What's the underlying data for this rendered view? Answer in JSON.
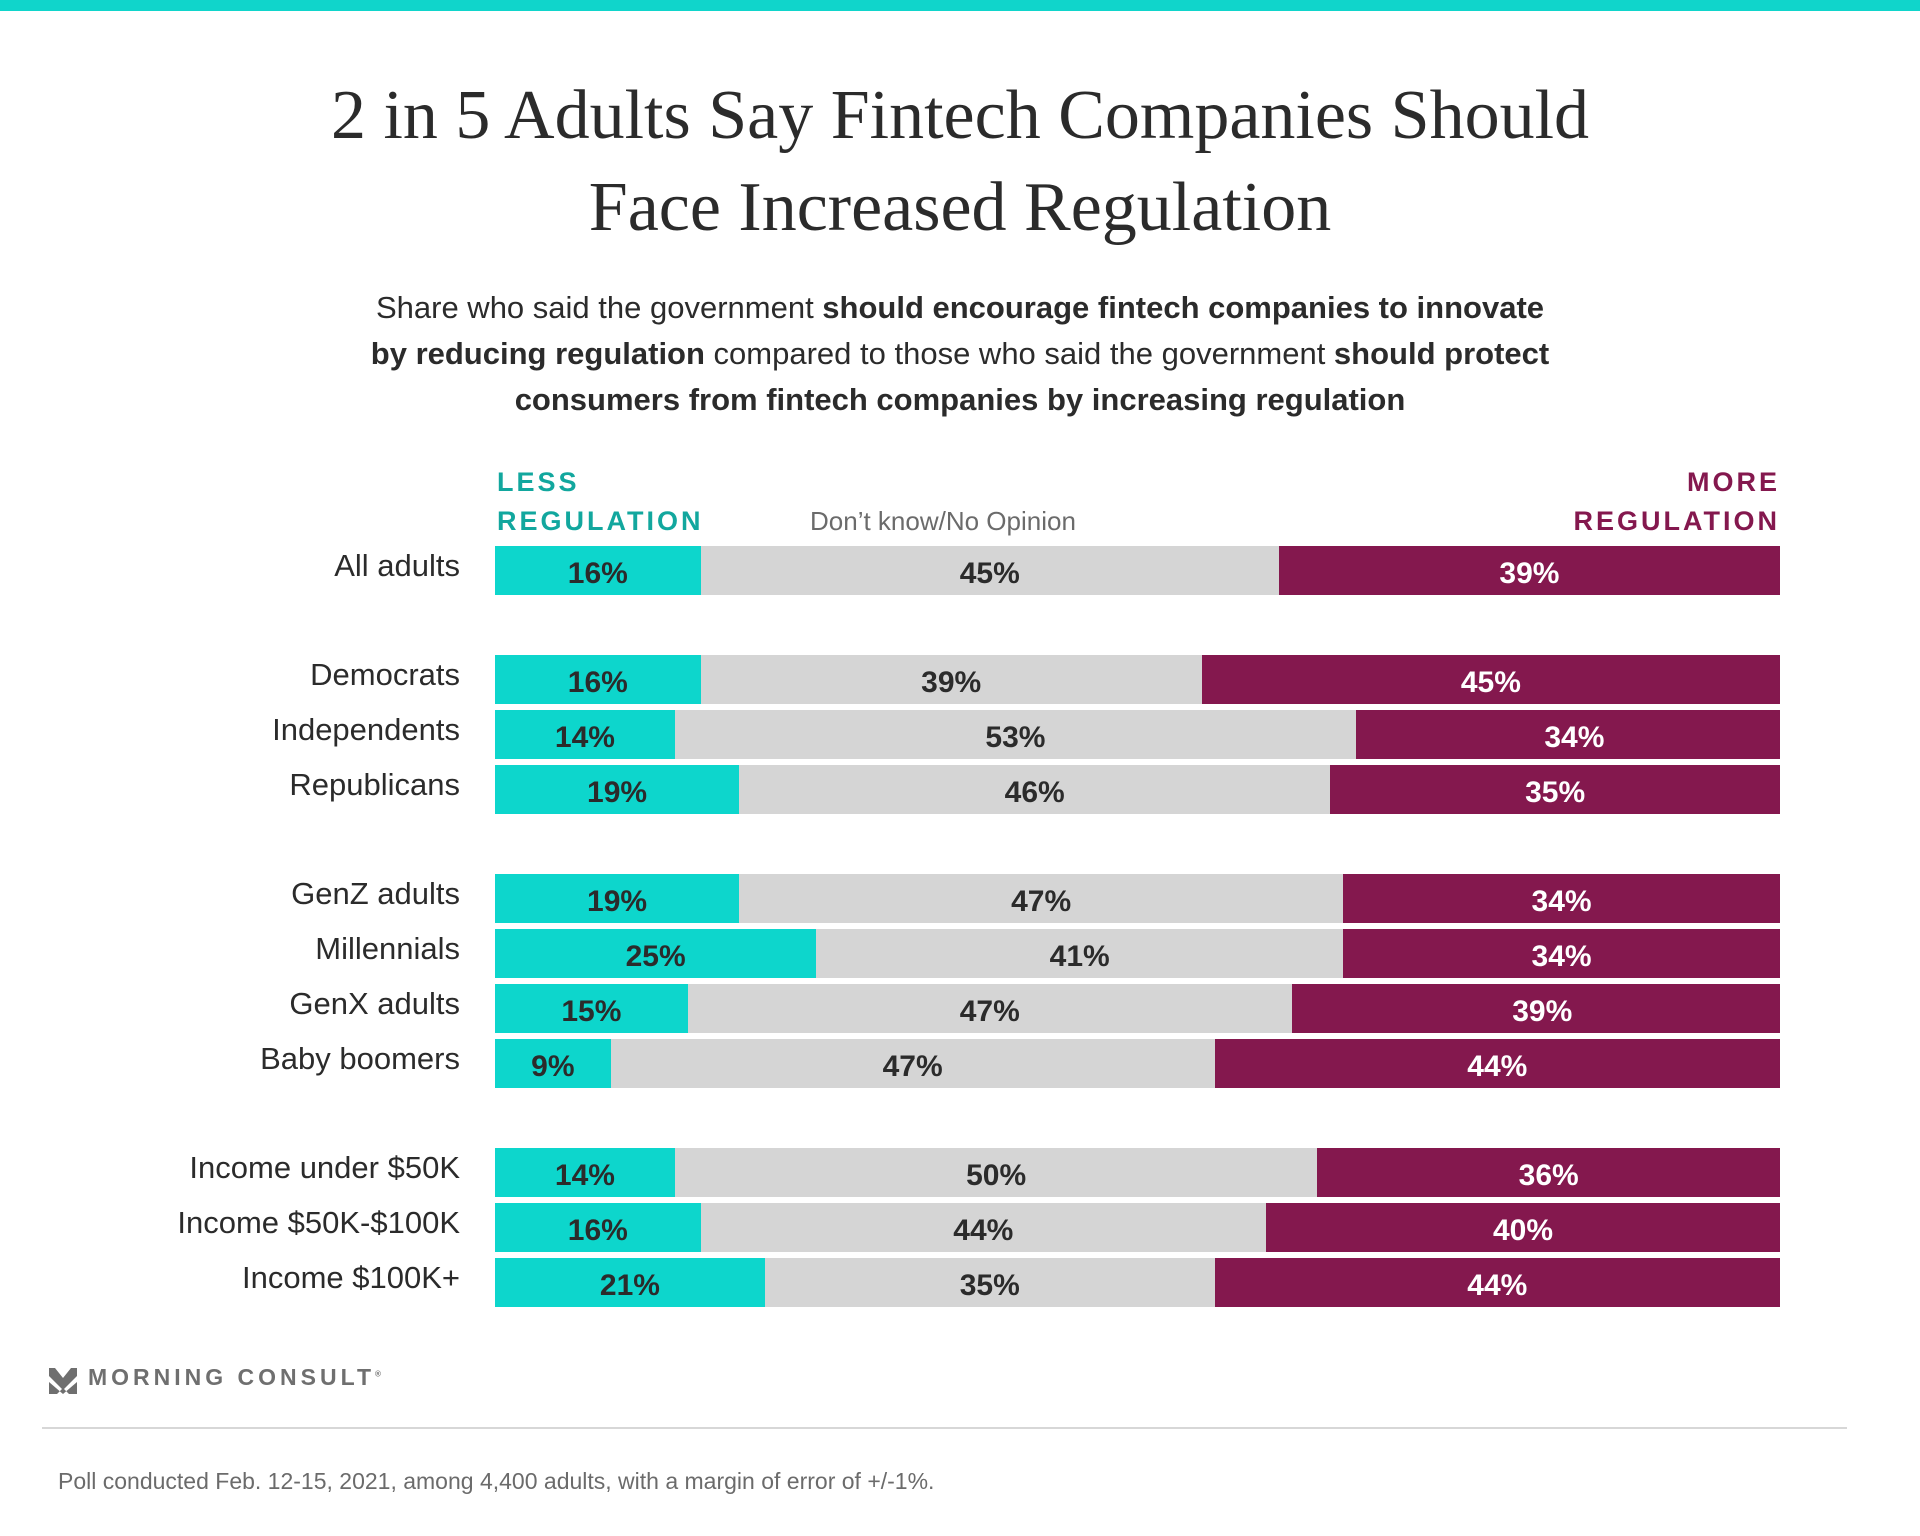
{
  "title_lines": [
    "2 in 5 Adults Say Fintech Companies Should",
    "Face Increased Regulation"
  ],
  "subtitle": {
    "line1_plain": "Share who said the government ",
    "line1_bold": "should encourage fintech companies to innovate",
    "line2_bold": "by reducing regulation",
    "line2_plain": " compared to those who said the government ",
    "line2_bold2": "should protect",
    "line3_bold": "consumers from fintech companies by increasing regulation"
  },
  "legend": {
    "less_line1": "LESS",
    "less_line2": "REGULATION",
    "dont_know": "Don’t know/No Opinion",
    "more_line1": "MORE",
    "more_line2": "REGULATION"
  },
  "colors": {
    "less": "#0dd6cc",
    "dont_know": "#d5d5d5",
    "more": "#84184e",
    "accent_bar": "#10d5cb"
  },
  "chart_data": {
    "type": "bar",
    "orientation": "horizontal",
    "stacked": true,
    "title": "2 in 5 Adults Say Fintech Companies Should Face Increased Regulation",
    "subtitle": "Share who said the government should encourage fintech companies to innovate by reducing regulation compared to those who said the government should protect consumers from fintech companies by increasing regulation",
    "xlim": [
      0,
      100
    ],
    "unit": "%",
    "categories": [
      "All adults",
      "Democrats",
      "Independents",
      "Republicans",
      "GenZ adults",
      "Millennials",
      "GenX adults",
      "Baby boomers",
      "Income under $50K",
      "Income $50K-$100K",
      "Income $100K+"
    ],
    "groups": [
      [
        0
      ],
      [
        1,
        2,
        3
      ],
      [
        4,
        5,
        6,
        7
      ],
      [
        8,
        9,
        10
      ]
    ],
    "series": [
      {
        "name": "Less regulation",
        "values": [
          16,
          16,
          14,
          19,
          19,
          25,
          15,
          9,
          14,
          16,
          21
        ]
      },
      {
        "name": "Don’t know/No Opinion",
        "values": [
          45,
          39,
          53,
          46,
          47,
          41,
          47,
          47,
          50,
          44,
          35
        ]
      },
      {
        "name": "More regulation",
        "values": [
          39,
          45,
          34,
          35,
          34,
          34,
          39,
          44,
          36,
          40,
          44
        ]
      }
    ]
  },
  "footer": {
    "brand": "MORNING CONSULT",
    "brand_mark": "®",
    "note": "Poll conducted Feb. 12-15, 2021, among 4,400 adults, with a margin of error of +/-1%."
  }
}
